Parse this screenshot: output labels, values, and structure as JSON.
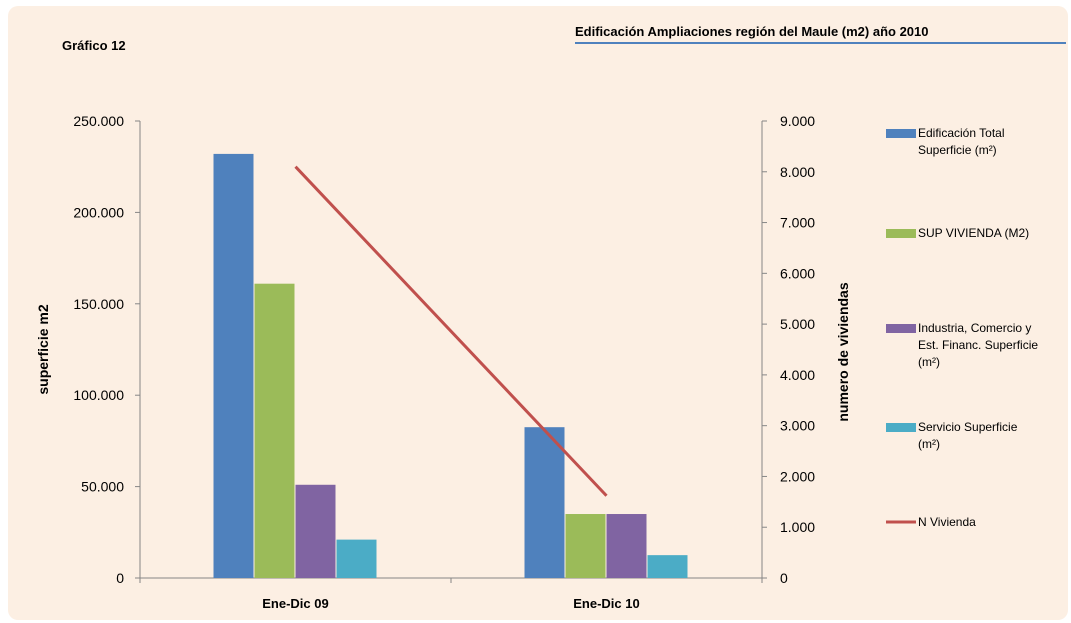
{
  "chart_label": "Gráfico  12",
  "chart_data": {
    "type": "bar",
    "title": "Edificación Ampliaciones región del Maule  (m2) año 2010",
    "categories": [
      "Ene-Dic 09",
      "Ene-Dic 10"
    ],
    "ylabel": "superficie m2",
    "y2label": "numero de viviendas",
    "ylim": [
      0,
      250000
    ],
    "y2lim": [
      0,
      9000
    ],
    "yticks": [
      "0",
      "50.000",
      "100.000",
      "150.000",
      "200.000",
      "250.000"
    ],
    "y2ticks": [
      "0",
      "1.000",
      "2.000",
      "3.000",
      "4.000",
      "5.000",
      "6.000",
      "7.000",
      "8.000",
      "9.000"
    ],
    "grid": false,
    "legend_position": "right",
    "series": [
      {
        "name": "Edificación Total Superficie (m²)",
        "legend_lines": [
          "Edificación Total",
          "Superficie (m²)"
        ],
        "type": "bar",
        "color": "#4f81bd",
        "values": [
          232000,
          82500
        ]
      },
      {
        "name": "SUP VIVIENDA  (M2)",
        "legend_lines": [
          "SUP VIVIENDA  (M2)"
        ],
        "type": "bar",
        "color": "#9bbb59",
        "values": [
          161000,
          35000
        ]
      },
      {
        "name": "Industria, Comercio y Est. Financ. Superficie (m²)",
        "legend_lines": [
          "Industria,  Comercio y",
          "Est. Financ. Superficie",
          "(m²)"
        ],
        "type": "bar",
        "color": "#8064a2",
        "values": [
          51000,
          35000
        ]
      },
      {
        "name": "Servicio Superficie (m²)",
        "legend_lines": [
          "Servicio Superficie",
          "(m²)"
        ],
        "type": "bar",
        "color": "#4bacc6",
        "values": [
          21000,
          12500
        ]
      },
      {
        "name": "N Vivienda",
        "legend_lines": [
          "N Vivienda"
        ],
        "type": "line",
        "axis": "right",
        "color": "#c0504d",
        "values": [
          8100,
          1620
        ]
      }
    ]
  }
}
